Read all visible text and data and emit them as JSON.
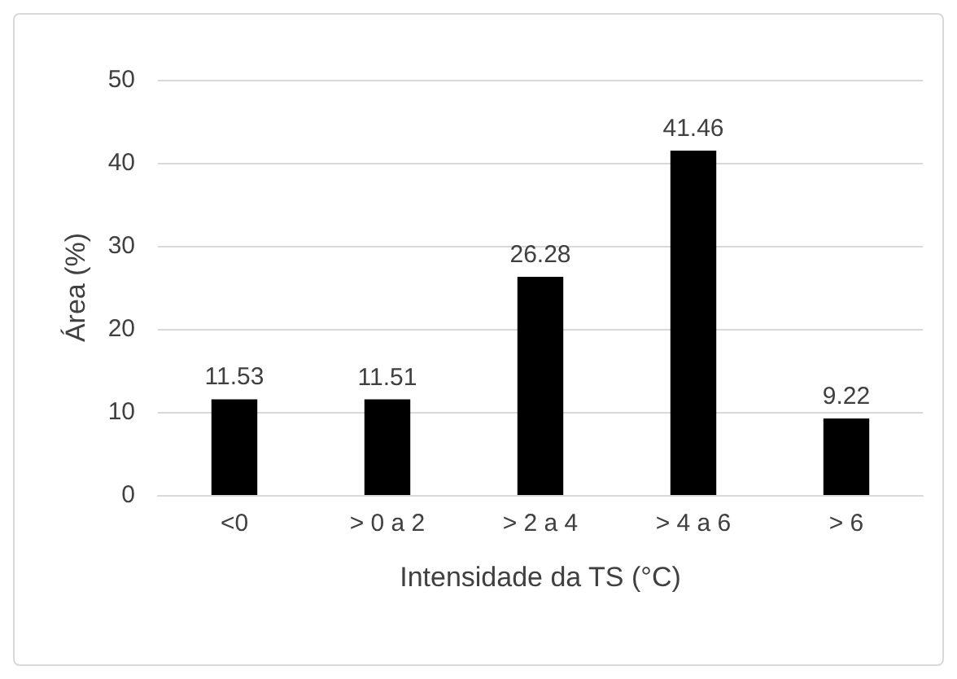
{
  "chart_data": {
    "type": "bar",
    "xlabel": "Intensidade da TS (°C)",
    "ylabel": "Área (%)",
    "categories": [
      "<0",
      "> 0 a 2",
      "> 2 a 4",
      "> 4 a 6",
      "> 6"
    ],
    "values": [
      11.53,
      11.51,
      26.28,
      41.46,
      9.22
    ],
    "color": "#000000",
    "ylim": [
      0,
      50
    ],
    "yticks": [
      0,
      10,
      20,
      30,
      40,
      50
    ],
    "grid": "y",
    "data_labels": true
  }
}
